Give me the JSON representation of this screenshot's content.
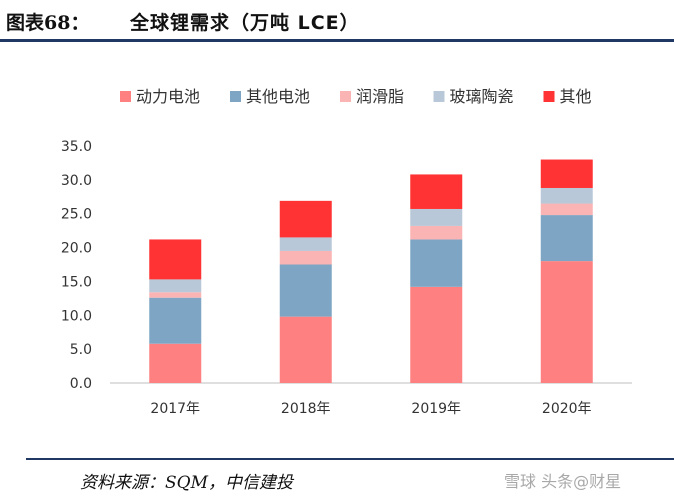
{
  "header": {
    "figure_label": "图表68：",
    "title": "全球锂需求（万吨 LCE）"
  },
  "footer": {
    "source": "资料来源：SQM，中信建投",
    "watermark": "雪球 头条@财星"
  },
  "chart_data": {
    "type": "bar",
    "stacked": true,
    "categories": [
      "2017年",
      "2018年",
      "2019年",
      "2020年"
    ],
    "series": [
      {
        "name": "动力电池",
        "color": "#ff8080",
        "values": [
          5.8,
          9.8,
          14.2,
          18.0
        ]
      },
      {
        "name": "其他电池",
        "color": "#7ea6c4",
        "values": [
          6.8,
          7.7,
          7.0,
          6.8
        ]
      },
      {
        "name": "润滑脂",
        "color": "#fbb4b4",
        "values": [
          0.8,
          2.0,
          2.0,
          1.7
        ]
      },
      {
        "name": "玻璃陶瓷",
        "color": "#b8c8d8",
        "values": [
          1.9,
          2.0,
          2.5,
          2.3
        ]
      },
      {
        "name": "其他",
        "color": "#ff3333",
        "values": [
          5.9,
          5.4,
          5.1,
          4.2
        ]
      }
    ],
    "y_ticks": [
      "0.0",
      "5.0",
      "10.0",
      "15.0",
      "20.0",
      "25.0",
      "30.0",
      "35.0"
    ],
    "ylim": [
      0,
      35
    ],
    "grid": false,
    "legend_position": "top"
  }
}
